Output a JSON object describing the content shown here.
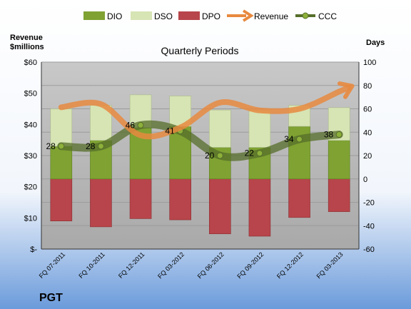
{
  "company": "PGT",
  "colors": {
    "dio": "#7FA232",
    "dso": "#D7E4B4",
    "dpo": "#B7454B",
    "revenue": "#E8893F",
    "ccc": "#566E2A",
    "background_top": "#FFFFFF",
    "background_bottom": "#6B9BDB",
    "plot_area": "#B2B2B2"
  },
  "chart_data": {
    "type": "bar",
    "title": "Quarterly Periods",
    "left_axis_title": [
      "Revenue",
      "$millions"
    ],
    "right_axis_title": "Days",
    "left_ticks": [
      "$60",
      "$50",
      "$40",
      "$30",
      "$20",
      "$10",
      "$-"
    ],
    "right_ticks": [
      "100",
      "80",
      "60",
      "40",
      "20",
      "0",
      "-20",
      "-40",
      "-60"
    ],
    "left_ylim": [
      0,
      60
    ],
    "right_ylim": [
      -60,
      100
    ],
    "legend_position": "top",
    "grid": true,
    "categories": [
      "FQ 07-2011",
      "FQ 10-2011",
      "FQ 12-2011",
      "FQ 03-2012",
      "FQ 06-2012",
      "FQ 09-2012",
      "FQ 12-2012",
      "FQ 03-2013"
    ],
    "series": [
      {
        "name": "DIO",
        "type": "stacked-bar",
        "axis": "right",
        "values": [
          28,
          33,
          44,
          45,
          27,
          27,
          45,
          33
        ]
      },
      {
        "name": "DSO",
        "type": "stacked-bar",
        "axis": "right",
        "values": [
          32,
          30,
          28,
          26,
          32,
          32,
          18,
          28
        ]
      },
      {
        "name": "DPO",
        "type": "bar-below-zero",
        "axis": "right",
        "values": [
          36,
          41,
          34,
          35,
          47,
          49,
          33,
          28
        ]
      },
      {
        "name": "Revenue",
        "type": "line",
        "axis": "left",
        "values": [
          45.5,
          46.5,
          36.5,
          39.0,
          47.0,
          44.5,
          45.0,
          50.5
        ]
      },
      {
        "name": "CCC",
        "type": "line",
        "axis": "right",
        "values": [
          28,
          28,
          46,
          41,
          20,
          22,
          34,
          38
        ],
        "labels": [
          "28",
          "28",
          "46",
          "41",
          "20",
          "22",
          "34",
          "38"
        ]
      }
    ]
  }
}
